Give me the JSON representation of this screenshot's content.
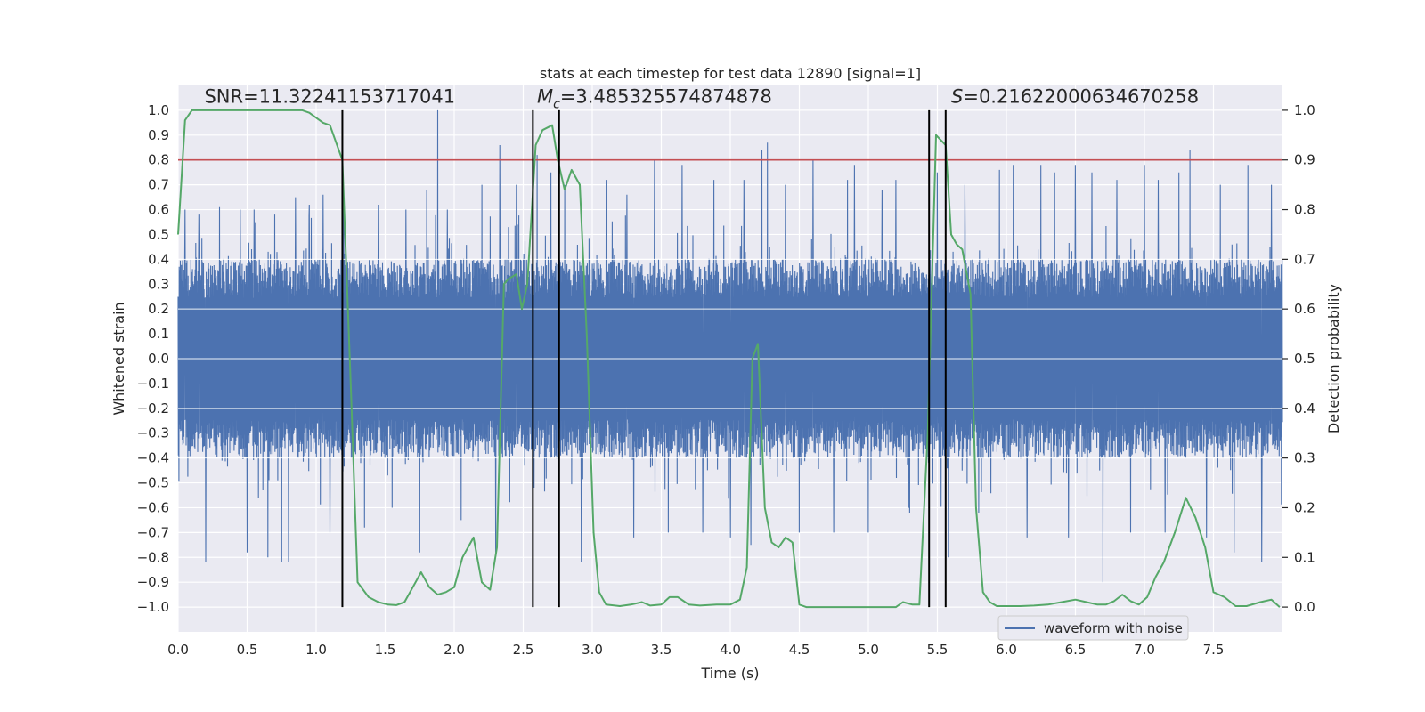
{
  "chart_data": {
    "type": "line",
    "title": "stats at each timestep for test data 12890 [signal=1]",
    "xlabel": "Time (s)",
    "ylabel_left": "Whitened strain",
    "ylabel_right": "Detection probability",
    "xlim": [
      0,
      8
    ],
    "ylim_left": [
      -1.1,
      1.1
    ],
    "ylim_right": [
      -0.05,
      1.05
    ],
    "x_ticks": [
      0,
      0.5,
      1,
      1.5,
      2,
      2.5,
      3,
      3.5,
      4,
      4.5,
      5,
      5.5,
      6,
      6.5,
      7,
      7.5
    ],
    "x_tick_labels": [
      "0.0",
      "0.5",
      "1.0",
      "1.5",
      "2.0",
      "2.5",
      "3.0",
      "3.5",
      "4.0",
      "4.5",
      "5.0",
      "5.5",
      "6.0",
      "6.5",
      "7.0",
      "7.5"
    ],
    "y_ticks_left": [
      -1.0,
      -0.9,
      -0.8,
      -0.7,
      -0.6,
      -0.5,
      -0.4,
      -0.3,
      -0.2,
      -0.1,
      0.0,
      0.1,
      0.2,
      0.3,
      0.4,
      0.5,
      0.6,
      0.7,
      0.8,
      0.9,
      1.0
    ],
    "y_tick_labels_left": [
      "−1.0",
      "−0.9",
      "−0.8",
      "−0.7",
      "−0.6",
      "−0.5",
      "−0.4",
      "−0.3",
      "−0.2",
      "−0.1",
      "0.0",
      "0.1",
      "0.2",
      "0.3",
      "0.4",
      "0.5",
      "0.6",
      "0.7",
      "0.8",
      "0.9",
      "1.0"
    ],
    "y_ticks_right": [
      0.0,
      0.1,
      0.2,
      0.3,
      0.4,
      0.5,
      0.6,
      0.7,
      0.8,
      0.9,
      1.0
    ],
    "y_tick_labels_right": [
      "0.0",
      "0.1",
      "0.2",
      "0.3",
      "0.4",
      "0.5",
      "0.6",
      "0.7",
      "0.8",
      "0.9",
      "1.0"
    ],
    "grid": true,
    "legend_placement": "lower-right",
    "series": [
      {
        "name": "waveform with noise",
        "axis": "left",
        "color": "#4c72b0",
        "kind": "dense noise trace",
        "typical_envelope": [
          -0.35,
          0.35
        ],
        "peak_range": [
          -0.83,
          1.0
        ],
        "spikes": [
          [
            0.05,
            0.6
          ],
          [
            0.15,
            0.58
          ],
          [
            0.2,
            -0.82
          ],
          [
            0.3,
            0.61
          ],
          [
            0.45,
            0.6
          ],
          [
            0.5,
            -0.78
          ],
          [
            0.55,
            0.6
          ],
          [
            0.65,
            -0.8
          ],
          [
            0.7,
            0.58
          ],
          [
            0.75,
            -0.82
          ],
          [
            0.8,
            -0.82
          ],
          [
            0.85,
            0.65
          ],
          [
            0.95,
            0.62
          ],
          [
            1.05,
            0.66
          ],
          [
            1.1,
            -0.7
          ],
          [
            1.2,
            0.6
          ],
          [
            1.35,
            -0.68
          ],
          [
            1.45,
            0.62
          ],
          [
            1.55,
            -0.6
          ],
          [
            1.65,
            0.6
          ],
          [
            1.75,
            -0.78
          ],
          [
            1.8,
            0.68
          ],
          [
            1.88,
            1.0
          ],
          [
            1.95,
            0.6
          ],
          [
            2.05,
            -0.65
          ],
          [
            2.2,
            0.7
          ],
          [
            2.3,
            -0.78
          ],
          [
            2.33,
            0.86
          ],
          [
            2.45,
            0.7
          ],
          [
            2.6,
            0.82
          ],
          [
            2.7,
            0.75
          ],
          [
            2.8,
            0.7
          ],
          [
            2.92,
            -0.82
          ],
          [
            3.1,
            0.72
          ],
          [
            3.25,
            0.66
          ],
          [
            3.3,
            -0.72
          ],
          [
            3.45,
            0.8
          ],
          [
            3.55,
            -0.7
          ],
          [
            3.65,
            0.78
          ],
          [
            3.8,
            -0.7
          ],
          [
            3.88,
            0.72
          ],
          [
            4.0,
            -0.72
          ],
          [
            4.1,
            0.72
          ],
          [
            4.15,
            -0.75
          ],
          [
            4.23,
            0.84
          ],
          [
            4.27,
            0.87
          ],
          [
            4.4,
            0.7
          ],
          [
            4.5,
            -0.7
          ],
          [
            4.6,
            0.8
          ],
          [
            4.75,
            -0.7
          ],
          [
            4.85,
            0.72
          ],
          [
            4.9,
            0.78
          ],
          [
            5.0,
            -0.7
          ],
          [
            5.1,
            0.68
          ],
          [
            5.2,
            0.72
          ],
          [
            5.3,
            -0.62
          ],
          [
            5.5,
            0.75
          ],
          [
            5.58,
            -0.8
          ],
          [
            5.7,
            0.7
          ],
          [
            5.8,
            -0.62
          ],
          [
            5.95,
            0.76
          ],
          [
            6.05,
            0.78
          ],
          [
            6.15,
            -0.72
          ],
          [
            6.25,
            0.78
          ],
          [
            6.35,
            0.75
          ],
          [
            6.45,
            -0.72
          ],
          [
            6.5,
            0.78
          ],
          [
            6.62,
            0.75
          ],
          [
            6.7,
            -0.9
          ],
          [
            6.8,
            0.72
          ],
          [
            6.9,
            -0.7
          ],
          [
            7.0,
            0.78
          ],
          [
            7.1,
            0.72
          ],
          [
            7.15,
            -0.7
          ],
          [
            7.25,
            0.75
          ],
          [
            7.33,
            0.84
          ],
          [
            7.45,
            -0.72
          ],
          [
            7.55,
            0.7
          ],
          [
            7.65,
            -0.78
          ],
          [
            7.75,
            0.78
          ],
          [
            7.85,
            -0.82
          ],
          [
            7.92,
            0.7
          ]
        ]
      },
      {
        "name": "",
        "axis": "right",
        "color": "#55a868",
        "kind": "detection probability",
        "x": [
          0.0,
          0.05,
          0.1,
          0.15,
          0.2,
          0.3,
          0.5,
          0.7,
          0.9,
          0.95,
          1.0,
          1.05,
          1.1,
          1.19,
          1.25,
          1.3,
          1.38,
          1.45,
          1.52,
          1.58,
          1.64,
          1.7,
          1.76,
          1.82,
          1.88,
          1.94,
          2.0,
          2.06,
          2.14,
          2.2,
          2.26,
          2.31,
          2.36,
          2.39,
          2.45,
          2.49,
          2.53,
          2.59,
          2.64,
          2.71,
          2.75,
          2.8,
          2.85,
          2.91,
          2.96,
          3.01,
          3.05,
          3.1,
          3.2,
          3.28,
          3.36,
          3.42,
          3.5,
          3.56,
          3.62,
          3.7,
          3.78,
          3.9,
          4.0,
          4.07,
          4.12,
          4.16,
          4.2,
          4.25,
          4.3,
          4.35,
          4.4,
          4.45,
          4.5,
          4.55,
          4.6,
          4.7,
          4.8,
          5.0,
          5.2,
          5.25,
          5.32,
          5.37,
          5.43,
          5.49,
          5.56,
          5.6,
          5.64,
          5.68,
          5.74,
          5.78,
          5.83,
          5.88,
          5.93,
          6.0,
          6.1,
          6.2,
          6.3,
          6.4,
          6.5,
          6.58,
          6.66,
          6.72,
          6.78,
          6.84,
          6.9,
          6.96,
          7.02,
          7.08,
          7.14,
          7.22,
          7.3,
          7.37,
          7.44,
          7.5,
          7.58,
          7.66,
          7.74,
          7.84,
          7.92,
          7.98
        ],
        "y": [
          0.75,
          0.98,
          1.0,
          1.0,
          1.0,
          1.0,
          1.0,
          1.0,
          1.0,
          0.995,
          0.985,
          0.975,
          0.97,
          0.9,
          0.45,
          0.05,
          0.02,
          0.01,
          0.005,
          0.004,
          0.01,
          0.04,
          0.07,
          0.04,
          0.025,
          0.03,
          0.04,
          0.1,
          0.14,
          0.05,
          0.035,
          0.12,
          0.65,
          0.66,
          0.67,
          0.6,
          0.65,
          0.93,
          0.96,
          0.97,
          0.9,
          0.84,
          0.88,
          0.85,
          0.55,
          0.15,
          0.03,
          0.005,
          0.002,
          0.005,
          0.01,
          0.003,
          0.005,
          0.02,
          0.02,
          0.005,
          0.003,
          0.005,
          0.005,
          0.015,
          0.08,
          0.5,
          0.53,
          0.2,
          0.13,
          0.12,
          0.14,
          0.13,
          0.005,
          0.0,
          0.0,
          0.0,
          0.0,
          0.0,
          0.0,
          0.01,
          0.005,
          0.005,
          0.35,
          0.95,
          0.93,
          0.75,
          0.73,
          0.72,
          0.63,
          0.2,
          0.03,
          0.01,
          0.002,
          0.002,
          0.002,
          0.003,
          0.005,
          0.01,
          0.015,
          0.01,
          0.005,
          0.005,
          0.012,
          0.025,
          0.012,
          0.005,
          0.02,
          0.06,
          0.09,
          0.15,
          0.22,
          0.18,
          0.12,
          0.03,
          0.02,
          0.002,
          0.002,
          0.01,
          0.015,
          0.0
        ]
      }
    ],
    "threshold_line": {
      "axis": "left",
      "value": 0.8,
      "color": "#c44e52"
    },
    "vertical_markers": {
      "axis_ymin": -1.0,
      "axis_ymax": 1.0,
      "x": [
        1.19,
        2.57,
        2.76,
        5.44,
        5.56
      ],
      "color": "#000000"
    },
    "annotations": [
      {
        "text": "SNR=11.32241153717041",
        "x": 0.19,
        "y": 1.03
      },
      {
        "text": "=3.485325574874878",
        "x": 2.6,
        "y": 1.03,
        "symbol": "M",
        "subscript": "c"
      },
      {
        "text": "=0.21622000634670258",
        "x": 5.6,
        "y": 1.03,
        "symbol": "S"
      }
    ],
    "legend": [
      {
        "label": "waveform with noise",
        "color": "#4c72b0"
      }
    ],
    "colors": {
      "background": "#eaeaf2",
      "grid": "#ffffff"
    }
  }
}
